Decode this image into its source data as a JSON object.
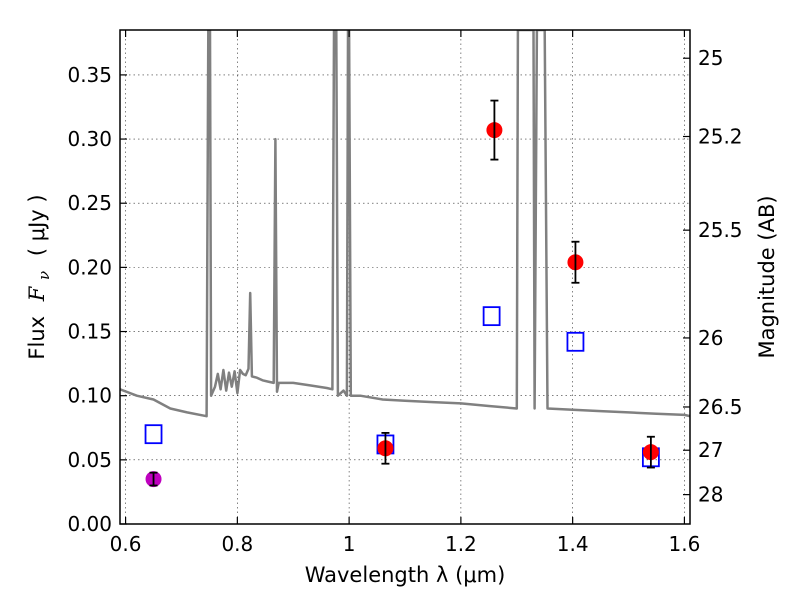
{
  "chart_data": {
    "type": "scatter",
    "xlabel": "Wavelength  λ (μm)",
    "ylabel_prefix": "Flux",
    "ylabel_symbol": "F",
    "ylabel_subscript": "ν",
    "ylabel_unit": "( μJy )",
    "y2label": "Magnitude (AB)",
    "xlim": [
      0.59,
      1.61
    ],
    "ylim": [
      0.0,
      0.385
    ],
    "grid": true,
    "x_ticks": [
      {
        "value": 0.6,
        "label": "0.6"
      },
      {
        "value": 0.8,
        "label": "0.8"
      },
      {
        "value": 1.0,
        "label": "1"
      },
      {
        "value": 1.2,
        "label": "1.2"
      },
      {
        "value": 1.4,
        "label": "1.4"
      },
      {
        "value": 1.6,
        "label": "1.6"
      }
    ],
    "y_ticks": [
      {
        "value": 0.0,
        "label": "0.00"
      },
      {
        "value": 0.05,
        "label": "0.05"
      },
      {
        "value": 0.1,
        "label": "0.10"
      },
      {
        "value": 0.15,
        "label": "0.15"
      },
      {
        "value": 0.2,
        "label": "0.20"
      },
      {
        "value": 0.25,
        "label": "0.25"
      },
      {
        "value": 0.3,
        "label": "0.30"
      },
      {
        "value": 0.35,
        "label": "0.35"
      }
    ],
    "y2_ticks": [
      {
        "flux": 0.363,
        "label": "25"
      },
      {
        "flux": 0.302,
        "label": "25.2"
      },
      {
        "flux": 0.229,
        "label": "25.5"
      },
      {
        "flux": 0.145,
        "label": "26"
      },
      {
        "flux": 0.0912,
        "label": "26.5"
      },
      {
        "flux": 0.0575,
        "label": "27"
      },
      {
        "flux": 0.0229,
        "label": "28"
      }
    ],
    "series": [
      {
        "marker": "circle",
        "color": "#ff0000",
        "points": [
          {
            "x": 1.065,
            "y": 0.059,
            "err": 0.012
          },
          {
            "x": 1.26,
            "y": 0.307,
            "err": 0.023
          },
          {
            "x": 1.405,
            "y": 0.204,
            "err": 0.016
          },
          {
            "x": 1.54,
            "y": 0.056,
            "err": 0.012
          }
        ]
      },
      {
        "marker": "circle",
        "color": "#bf00bf",
        "points": [
          {
            "x": 0.65,
            "y": 0.035,
            "err": 0.005
          }
        ]
      },
      {
        "marker": "open-square",
        "color": "#0000ff",
        "points": [
          {
            "x": 0.65,
            "y": 0.07
          },
          {
            "x": 1.065,
            "y": 0.062
          },
          {
            "x": 1.255,
            "y": 0.162
          },
          {
            "x": 1.405,
            "y": 0.142
          },
          {
            "x": 1.54,
            "y": 0.052
          }
        ]
      },
      {
        "marker": "line",
        "color": "#808080",
        "points": [
          {
            "x": 0.59,
            "y": 0.105
          },
          {
            "x": 0.62,
            "y": 0.1
          },
          {
            "x": 0.65,
            "y": 0.097
          },
          {
            "x": 0.68,
            "y": 0.09
          },
          {
            "x": 0.71,
            "y": 0.087
          },
          {
            "x": 0.745,
            "y": 0.084
          },
          {
            "x": 0.748,
            "y": 0.385
          },
          {
            "x": 0.751,
            "y": 0.385
          },
          {
            "x": 0.753,
            "y": 0.1
          },
          {
            "x": 0.76,
            "y": 0.107
          },
          {
            "x": 0.765,
            "y": 0.117
          },
          {
            "x": 0.77,
            "y": 0.105
          },
          {
            "x": 0.775,
            "y": 0.12
          },
          {
            "x": 0.78,
            "y": 0.104
          },
          {
            "x": 0.785,
            "y": 0.118
          },
          {
            "x": 0.79,
            "y": 0.107
          },
          {
            "x": 0.795,
            "y": 0.119
          },
          {
            "x": 0.8,
            "y": 0.102
          },
          {
            "x": 0.805,
            "y": 0.12
          },
          {
            "x": 0.81,
            "y": 0.117
          },
          {
            "x": 0.815,
            "y": 0.116
          },
          {
            "x": 0.82,
            "y": 0.121
          },
          {
            "x": 0.823,
            "y": 0.18
          },
          {
            "x": 0.826,
            "y": 0.115
          },
          {
            "x": 0.835,
            "y": 0.114
          },
          {
            "x": 0.845,
            "y": 0.112
          },
          {
            "x": 0.855,
            "y": 0.111
          },
          {
            "x": 0.865,
            "y": 0.11
          },
          {
            "x": 0.868,
            "y": 0.3
          },
          {
            "x": 0.871,
            "y": 0.103
          },
          {
            "x": 0.874,
            "y": 0.11
          },
          {
            "x": 0.9,
            "y": 0.11
          },
          {
            "x": 0.93,
            "y": 0.108
          },
          {
            "x": 0.96,
            "y": 0.106
          },
          {
            "x": 0.97,
            "y": 0.105
          },
          {
            "x": 0.973,
            "y": 0.385
          },
          {
            "x": 0.977,
            "y": 0.385
          },
          {
            "x": 0.98,
            "y": 0.1
          },
          {
            "x": 0.99,
            "y": 0.104
          },
          {
            "x": 0.996,
            "y": 0.1
          },
          {
            "x": 0.998,
            "y": 0.385
          },
          {
            "x": 1.0,
            "y": 0.385
          },
          {
            "x": 1.003,
            "y": 0.1
          },
          {
            "x": 1.02,
            "y": 0.1
          },
          {
            "x": 1.06,
            "y": 0.097
          },
          {
            "x": 1.1,
            "y": 0.096
          },
          {
            "x": 1.15,
            "y": 0.095
          },
          {
            "x": 1.2,
            "y": 0.094
          },
          {
            "x": 1.25,
            "y": 0.092
          },
          {
            "x": 1.3,
            "y": 0.09
          },
          {
            "x": 1.302,
            "y": 0.385
          },
          {
            "x": 1.33,
            "y": 0.385
          },
          {
            "x": 1.332,
            "y": 0.09
          },
          {
            "x": 1.336,
            "y": 0.385
          },
          {
            "x": 1.35,
            "y": 0.385
          },
          {
            "x": 1.355,
            "y": 0.09
          },
          {
            "x": 1.4,
            "y": 0.089
          },
          {
            "x": 1.45,
            "y": 0.088
          },
          {
            "x": 1.5,
            "y": 0.087
          },
          {
            "x": 1.55,
            "y": 0.086
          },
          {
            "x": 1.6,
            "y": 0.085
          },
          {
            "x": 1.61,
            "y": 0.084
          }
        ]
      }
    ]
  }
}
